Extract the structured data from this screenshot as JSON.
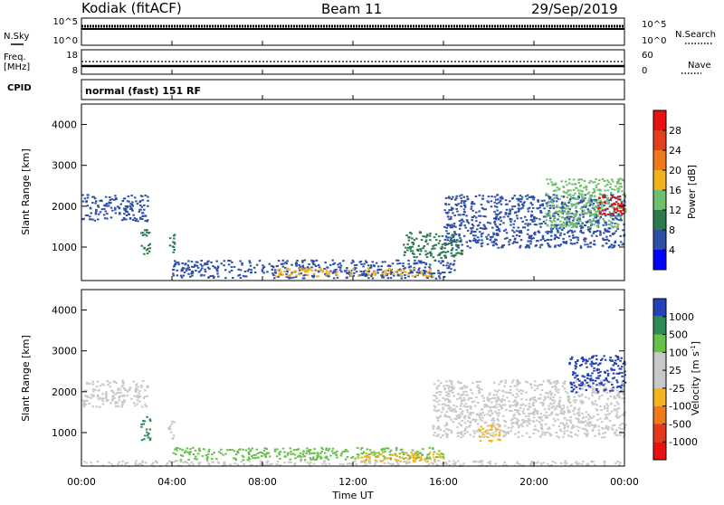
{
  "header": {
    "station": "Kodiak (fitACF)",
    "beam": "Beam 11",
    "date": "29/Sep/2019"
  },
  "strip": {
    "nsky_label": "N.Sky",
    "nsearch_label": "N.Search",
    "left_ticks": [
      "10^5",
      "10^0"
    ],
    "right_ticks": [
      "10^5",
      "10^0"
    ],
    "freq_label_1": "Freq.",
    "freq_label_2": "[MHz]",
    "freq_ticks": [
      "18",
      "8"
    ],
    "nave_label": "Nave",
    "nave_ticks": [
      "60",
      "0"
    ],
    "cpid_label": "CPID",
    "cpid_value": "normal (fast) 151 RF"
  },
  "power_colorbar": {
    "label": "Power [dB]",
    "ticks": [
      "28",
      "24",
      "20",
      "16",
      "12",
      "8",
      "4"
    ],
    "colors": [
      "#0000ff",
      "#2e4fa8",
      "#2c7b4f",
      "#6fbf6f",
      "#f2b21c",
      "#f07a1a",
      "#e2401a",
      "#e81010"
    ]
  },
  "velocity_colorbar": {
    "label": "Velocity [m s",
    "label_sup": "-1",
    "label_end": "]",
    "ticks": [
      "1000",
      "500",
      "100",
      "25",
      "-25",
      "-100",
      "-500",
      "-1000"
    ],
    "colors": [
      "#2642b8",
      "#2c8a55",
      "#66c04a",
      "#c8c8c8",
      "#c8c8c8",
      "#f5b41e",
      "#f07a1a",
      "#e23a1a",
      "#e81010"
    ]
  },
  "chart_data": [
    {
      "type": "heatmap",
      "name": "power",
      "ylabel": "Slant Range [km]",
      "ylim": [
        180,
        4500
      ],
      "xlim": [
        0,
        24
      ],
      "yticks": [
        1000,
        2000,
        3000,
        4000
      ],
      "ytick_labels": [
        "1000",
        "2000",
        "3000",
        "4000"
      ],
      "regions": [
        {
          "t0": 0.0,
          "t1": 2.9,
          "r0": 1650,
          "r1": 2300,
          "color": "#2e4fa8"
        },
        {
          "t0": 2.6,
          "t1": 3.0,
          "r0": 800,
          "r1": 1450,
          "color": "#2c7b4f"
        },
        {
          "t0": 3.8,
          "t1": 4.1,
          "r0": 850,
          "r1": 1350,
          "color": "#2c7b4f"
        },
        {
          "t0": 4.0,
          "t1": 16.5,
          "r0": 250,
          "r1": 700,
          "color": "#2e4fa8"
        },
        {
          "t0": 8.5,
          "t1": 15.5,
          "r0": 300,
          "r1": 500,
          "color": "#f2b21c"
        },
        {
          "t0": 14.2,
          "t1": 16.8,
          "r0": 750,
          "r1": 1400,
          "color": "#2c7b4f"
        },
        {
          "t0": 16.0,
          "t1": 24.0,
          "r0": 1000,
          "r1": 2300,
          "color": "#2e4fa8"
        },
        {
          "t0": 20.5,
          "t1": 24.0,
          "r0": 1500,
          "r1": 2700,
          "color": "#6fbf6f"
        },
        {
          "t0": 22.8,
          "t1": 24.0,
          "r0": 1800,
          "r1": 2300,
          "color": "#e81010"
        }
      ]
    },
    {
      "type": "heatmap",
      "name": "velocity",
      "ylabel": "Slant Range [km]",
      "xlabel": "Time UT",
      "ylim": [
        180,
        4500
      ],
      "xlim": [
        0,
        24
      ],
      "yticks": [
        1000,
        2000,
        3000,
        4000
      ],
      "ytick_labels": [
        "1000",
        "2000",
        "3000",
        "4000"
      ],
      "xticks": [
        0,
        4,
        8,
        12,
        16,
        20,
        24
      ],
      "xtick_labels": [
        "00:00",
        "04:00",
        "08:00",
        "12:00",
        "16:00",
        "20:00",
        "00:00"
      ],
      "regions": [
        {
          "t0": 0.0,
          "t1": 2.9,
          "r0": 1650,
          "r1": 2300,
          "color": "#c8c8c8"
        },
        {
          "t0": 2.6,
          "t1": 3.0,
          "r0": 800,
          "r1": 1400,
          "color": "#2c8a55"
        },
        {
          "t0": 3.8,
          "t1": 4.1,
          "r0": 850,
          "r1": 1350,
          "color": "#c8c8c8"
        },
        {
          "t0": 4.0,
          "t1": 16.0,
          "r0": 350,
          "r1": 650,
          "color": "#66c04a"
        },
        {
          "t0": 12.0,
          "t1": 16.0,
          "r0": 300,
          "r1": 550,
          "color": "#f5b41e"
        },
        {
          "t0": 0.0,
          "t1": 24.0,
          "r0": 200,
          "r1": 330,
          "color": "#c8c8c8"
        },
        {
          "t0": 15.5,
          "t1": 24.0,
          "r0": 900,
          "r1": 2300,
          "color": "#c8c8c8"
        },
        {
          "t0": 17.5,
          "t1": 18.5,
          "r0": 800,
          "r1": 1200,
          "color": "#f5b41e"
        },
        {
          "t0": 21.5,
          "t1": 24.0,
          "r0": 2000,
          "r1": 2900,
          "color": "#2642b8"
        }
      ]
    }
  ]
}
